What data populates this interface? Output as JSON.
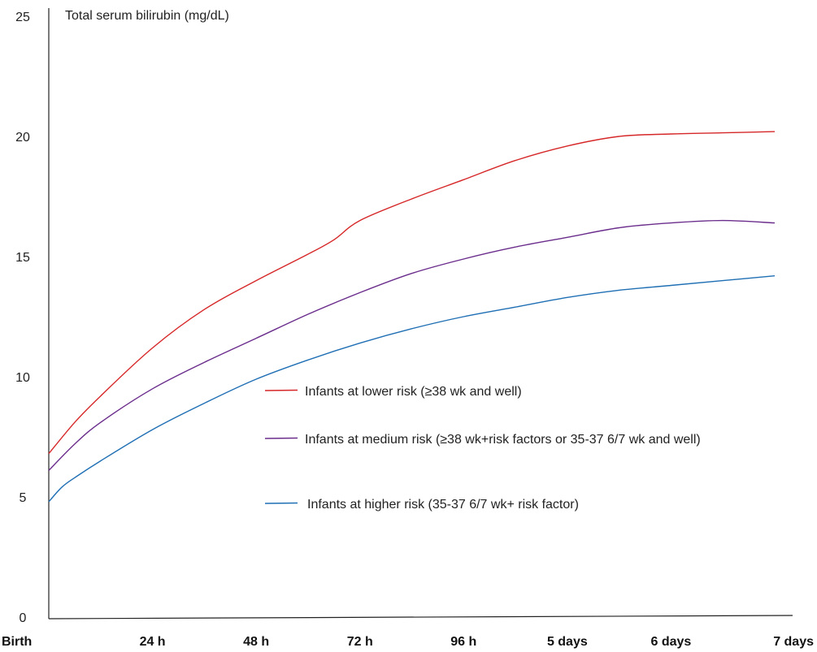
{
  "chart_data": {
    "type": "line",
    "ylabel": "Total serum bilirubin (mg/dL)",
    "xlabel": "",
    "ylim": [
      0,
      25
    ],
    "yticks": [
      "0",
      "5",
      "10",
      "15",
      "20",
      "25"
    ],
    "x_categories": [
      "Birth",
      "24 h",
      "48 h",
      "72 h",
      "96 h",
      "5 days",
      "6 days",
      "7 days"
    ],
    "x_hours": [
      0,
      24,
      48,
      72,
      96,
      120,
      144,
      168
    ],
    "grid": false,
    "legend_position": "center-right",
    "series": [
      {
        "name": "Infants at lower risk (≥38 wk and well)",
        "color": "#d62728",
        "x": [
          0,
          6,
          12,
          24,
          36,
          48,
          60,
          66,
          72,
          84,
          96,
          108,
          120,
          132,
          144,
          156,
          168
        ],
        "y": [
          6.8,
          8.1,
          9.2,
          11.2,
          12.8,
          14.0,
          15.1,
          15.7,
          16.5,
          17.4,
          18.2,
          19.0,
          19.6,
          20.0,
          20.1,
          20.15,
          20.2
        ]
      },
      {
        "name": "Infants at medium risk (≥38 wk+risk factors or 35-37 6/7 wk and well)",
        "color": "#6b2d8c",
        "x": [
          0,
          6,
          12,
          24,
          36,
          48,
          60,
          72,
          84,
          96,
          108,
          120,
          132,
          144,
          156,
          168
        ],
        "y": [
          6.1,
          7.2,
          8.1,
          9.5,
          10.6,
          11.6,
          12.6,
          13.5,
          14.3,
          14.9,
          15.4,
          15.8,
          16.2,
          16.4,
          16.5,
          16.4
        ]
      },
      {
        "name": "Infants at higher risk (35-37 6/7 wk+ risk factor)",
        "color": "#1f6fb4",
        "x": [
          0,
          3,
          6,
          12,
          24,
          36,
          48,
          60,
          72,
          84,
          96,
          108,
          120,
          132,
          144,
          156,
          168
        ],
        "y": [
          4.8,
          5.4,
          5.8,
          6.5,
          7.8,
          8.9,
          9.9,
          10.7,
          11.4,
          12.0,
          12.5,
          12.9,
          13.3,
          13.6,
          13.8,
          14.0,
          14.2
        ]
      }
    ]
  }
}
